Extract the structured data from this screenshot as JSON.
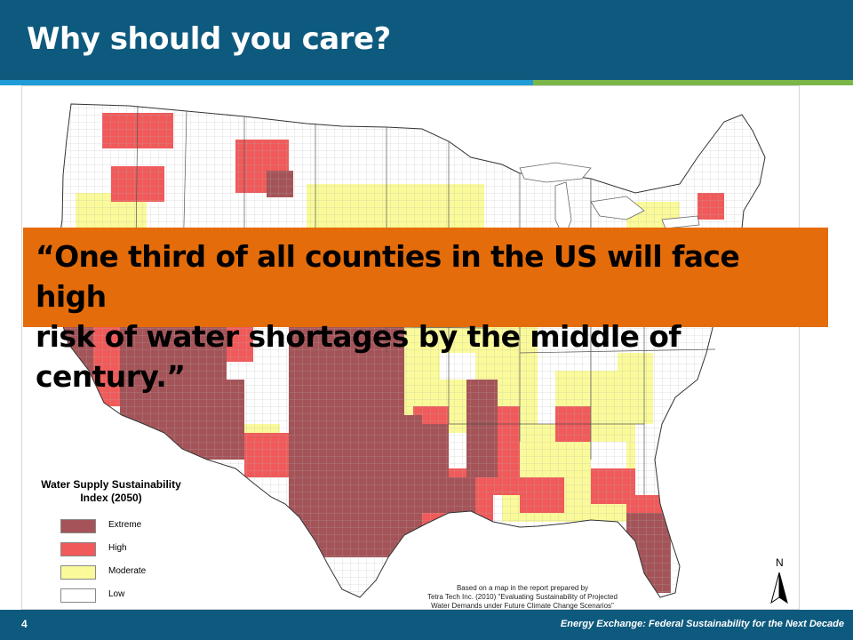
{
  "slide": {
    "title": "Why should you care?",
    "page_number": "4",
    "footer_text": "Energy Exchange: Federal Sustainability for the Next Decade"
  },
  "quote": {
    "line1": "“One third of all counties in the US will face high",
    "line2": "risk of water shortages by the middle of century.”"
  },
  "map": {
    "legend": {
      "title_line1": "Water Supply Sustainability",
      "title_line2": "Index (2050)",
      "items": [
        {
          "label": "Extreme",
          "color": "#a45458"
        },
        {
          "label": "High",
          "color": "#f05a5a"
        },
        {
          "label": "Moderate",
          "color": "#fafa9a"
        },
        {
          "label": "Low",
          "color": "#ffffff"
        }
      ]
    },
    "credit": {
      "line1": "Based on a map in the report prepared by",
      "line2": "Tetra Tech Inc. (2010) \"Evaluating Sustainability of Projected",
      "line3": "Water Demands under Future Climate Change Scenarios\""
    },
    "north_label": "N"
  },
  "colors": {
    "header": "#0e5a7e",
    "quote_box": "#e46c0a",
    "accent_blue": "#1f9bd7",
    "accent_green": "#7ab648"
  }
}
